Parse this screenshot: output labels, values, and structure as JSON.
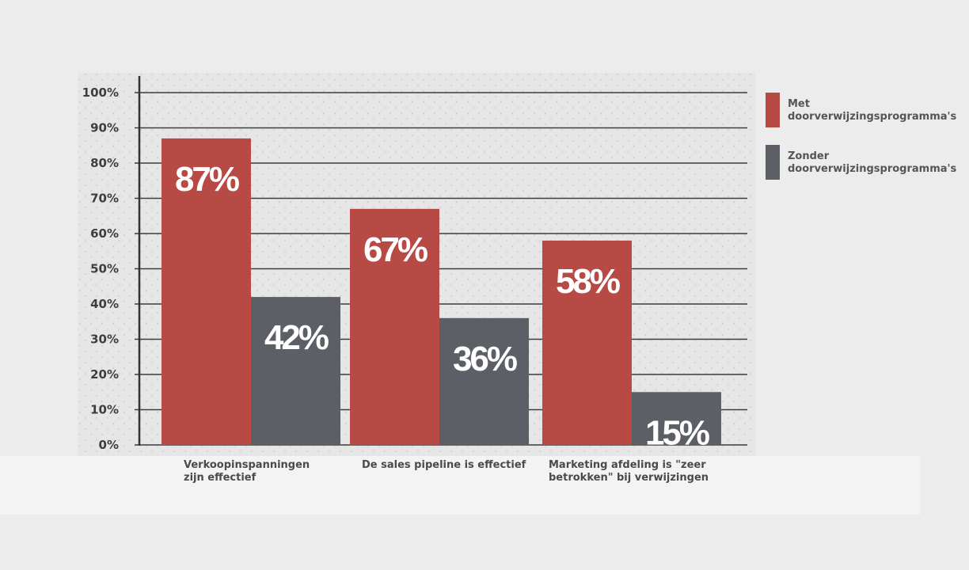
{
  "chart_data": {
    "type": "bar",
    "title": "",
    "xlabel": "",
    "ylabel": "",
    "ylim": [
      0,
      100
    ],
    "yticks": [
      "0%",
      "10%",
      "20%",
      "30%",
      "40%",
      "50%",
      "60%",
      "70%",
      "80%",
      "90%",
      "100%"
    ],
    "grid": true,
    "legend_position": "right",
    "categories": [
      [
        "Verkoopinspanningen",
        "zijn effectief"
      ],
      [
        "De sales pipeline is effectief"
      ],
      [
        "Marketing afdeling is \"zeer",
        "betrokken\" bij verwijzingen"
      ]
    ],
    "series": [
      {
        "name": [
          "Met",
          "doorverwijzingsprogramma's"
        ],
        "color": "#b84a46",
        "values": [
          87,
          67,
          58
        ],
        "labels": [
          "87%",
          "67%",
          "58%"
        ]
      },
      {
        "name": [
          "Zonder",
          "doorverwijzingsprogramma's"
        ],
        "color": "#5c5f66",
        "values": [
          42,
          36,
          15
        ],
        "labels": [
          "42%",
          "36%",
          "15%"
        ]
      }
    ]
  },
  "colors": {
    "background": "#ececec",
    "plot_background": "#e5e5e5",
    "grid": "#3c3c3c",
    "axis": "#333333",
    "label_panel": "#f3f3f3"
  }
}
